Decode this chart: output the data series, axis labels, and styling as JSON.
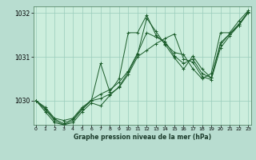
{
  "title": "Graphe pression niveau de la mer (hPa)",
  "bg_color": "#b8ddd0",
  "plot_bg_color": "#cceedd",
  "grid_color": "#99ccbb",
  "line_color": "#1a5c2a",
  "series": [
    [
      1030.0,
      1029.85,
      1029.6,
      1029.55,
      1029.6,
      1029.85,
      1030.0,
      1030.05,
      1030.15,
      1030.3,
      1030.6,
      1031.0,
      1031.15,
      1031.3,
      1031.42,
      1031.52,
      1030.95,
      1030.88,
      1030.55,
      1030.48,
      1031.2,
      1031.48,
      1031.72,
      1032.0
    ],
    [
      1030.0,
      1029.8,
      1029.55,
      1029.45,
      1029.55,
      1029.8,
      1030.0,
      1030.85,
      1030.2,
      1030.5,
      1031.55,
      1031.55,
      1031.95,
      1031.5,
      1031.3,
      1031.1,
      1031.05,
      1030.73,
      1030.5,
      1030.62,
      1031.55,
      1031.55,
      1031.82,
      1032.05
    ],
    [
      1030.0,
      1029.75,
      1029.5,
      1029.45,
      1029.5,
      1029.75,
      1029.95,
      1029.88,
      1030.12,
      1030.32,
      1030.65,
      1031.05,
      1031.88,
      1031.58,
      1031.28,
      1030.98,
      1030.72,
      1031.02,
      1030.72,
      1030.52,
      1031.32,
      1031.52,
      1031.72,
      1032.02
    ],
    [
      1030.0,
      1029.82,
      1029.58,
      1029.48,
      1029.58,
      1029.82,
      1030.02,
      1030.15,
      1030.25,
      1030.42,
      1030.68,
      1031.08,
      1031.55,
      1031.45,
      1031.35,
      1031.02,
      1030.85,
      1030.95,
      1030.62,
      1030.52,
      1031.28,
      1031.52,
      1031.75,
      1032.02
    ]
  ],
  "x_ticks": [
    0,
    1,
    2,
    3,
    4,
    5,
    6,
    7,
    8,
    9,
    10,
    11,
    12,
    13,
    14,
    15,
    16,
    17,
    18,
    19,
    20,
    21,
    22,
    23
  ],
  "y_ticks": [
    1030,
    1031,
    1032
  ],
  "ylim": [
    1029.45,
    1032.15
  ],
  "xlim": [
    -0.3,
    23.3
  ]
}
